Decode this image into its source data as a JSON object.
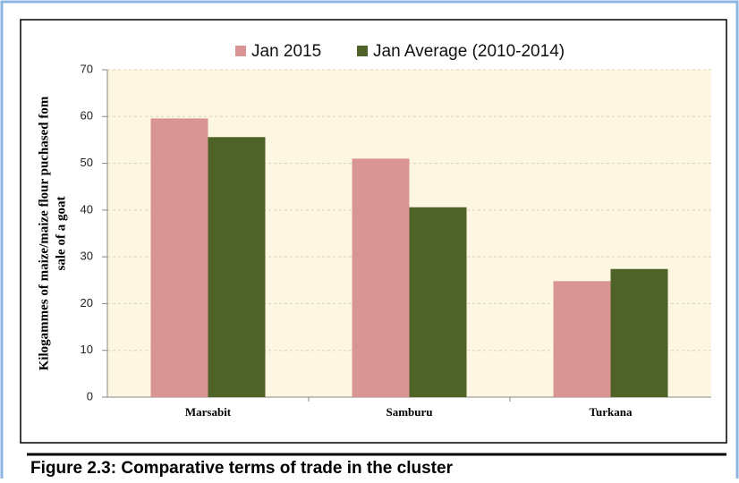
{
  "chart_data": {
    "type": "bar",
    "y_label": [
      "Kilogammes of maize/maize flour puchased fom",
      "sale of  a goat"
    ],
    "categories": [
      "Marsabit",
      "Samburu",
      "Turkana"
    ],
    "series": [
      {
        "name": "Jan 2015",
        "color": "#d99594",
        "values": [
          59.6,
          51,
          24.8
        ]
      },
      {
        "name": "Jan  Average (2010-2014)",
        "color": "#4f6228",
        "values": [
          55.6,
          40.6,
          27.4
        ]
      }
    ],
    "ylim": [
      0,
      70
    ],
    "yticks": [
      0,
      10,
      20,
      30,
      40,
      50,
      60,
      70
    ],
    "grid": true,
    "legend": "top"
  },
  "caption": "Figure 2.3: Comparative terms of trade in the cluster"
}
